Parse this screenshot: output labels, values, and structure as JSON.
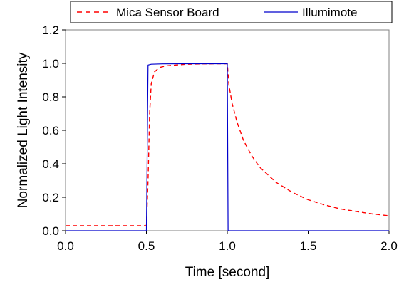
{
  "chart_data": {
    "type": "line",
    "xlabel": "Time [second]",
    "ylabel": "Normalized Light Intensity",
    "xlim": [
      0.0,
      2.0
    ],
    "ylim": [
      0.0,
      1.2
    ],
    "x_ticks": [
      "0.0",
      "0.5",
      "1.0",
      "1.5",
      "2.0"
    ],
    "y_ticks": [
      "0.0",
      "0.2",
      "0.4",
      "0.6",
      "0.8",
      "1.0",
      "1.2"
    ],
    "grid": false,
    "legend_position": "top",
    "series": [
      {
        "name": "Mica Sensor Board",
        "color": "#ff0000",
        "style": "dashed",
        "x": [
          0.0,
          0.5,
          0.51,
          0.52,
          0.53,
          0.55,
          0.58,
          0.62,
          0.68,
          0.75,
          0.85,
          0.95,
          1.0,
          1.01,
          1.03,
          1.06,
          1.1,
          1.15,
          1.2,
          1.3,
          1.4,
          1.5,
          1.6,
          1.7,
          1.8,
          1.9,
          2.0
        ],
        "y": [
          0.03,
          0.03,
          0.3,
          0.7,
          0.88,
          0.95,
          0.975,
          0.985,
          0.99,
          0.995,
          0.997,
          0.998,
          0.998,
          0.87,
          0.76,
          0.65,
          0.54,
          0.45,
          0.38,
          0.29,
          0.23,
          0.185,
          0.155,
          0.13,
          0.115,
          0.1,
          0.09
        ]
      },
      {
        "name": "Illumimote",
        "color": "#0000cc",
        "style": "solid",
        "x": [
          0.0,
          0.5,
          0.51,
          0.53,
          0.6,
          0.8,
          0.99,
          1.0,
          1.005,
          2.0
        ],
        "y": [
          0.0,
          0.0,
          0.99,
          0.995,
          0.997,
          0.998,
          0.998,
          0.998,
          0.0,
          0.0
        ]
      }
    ]
  }
}
